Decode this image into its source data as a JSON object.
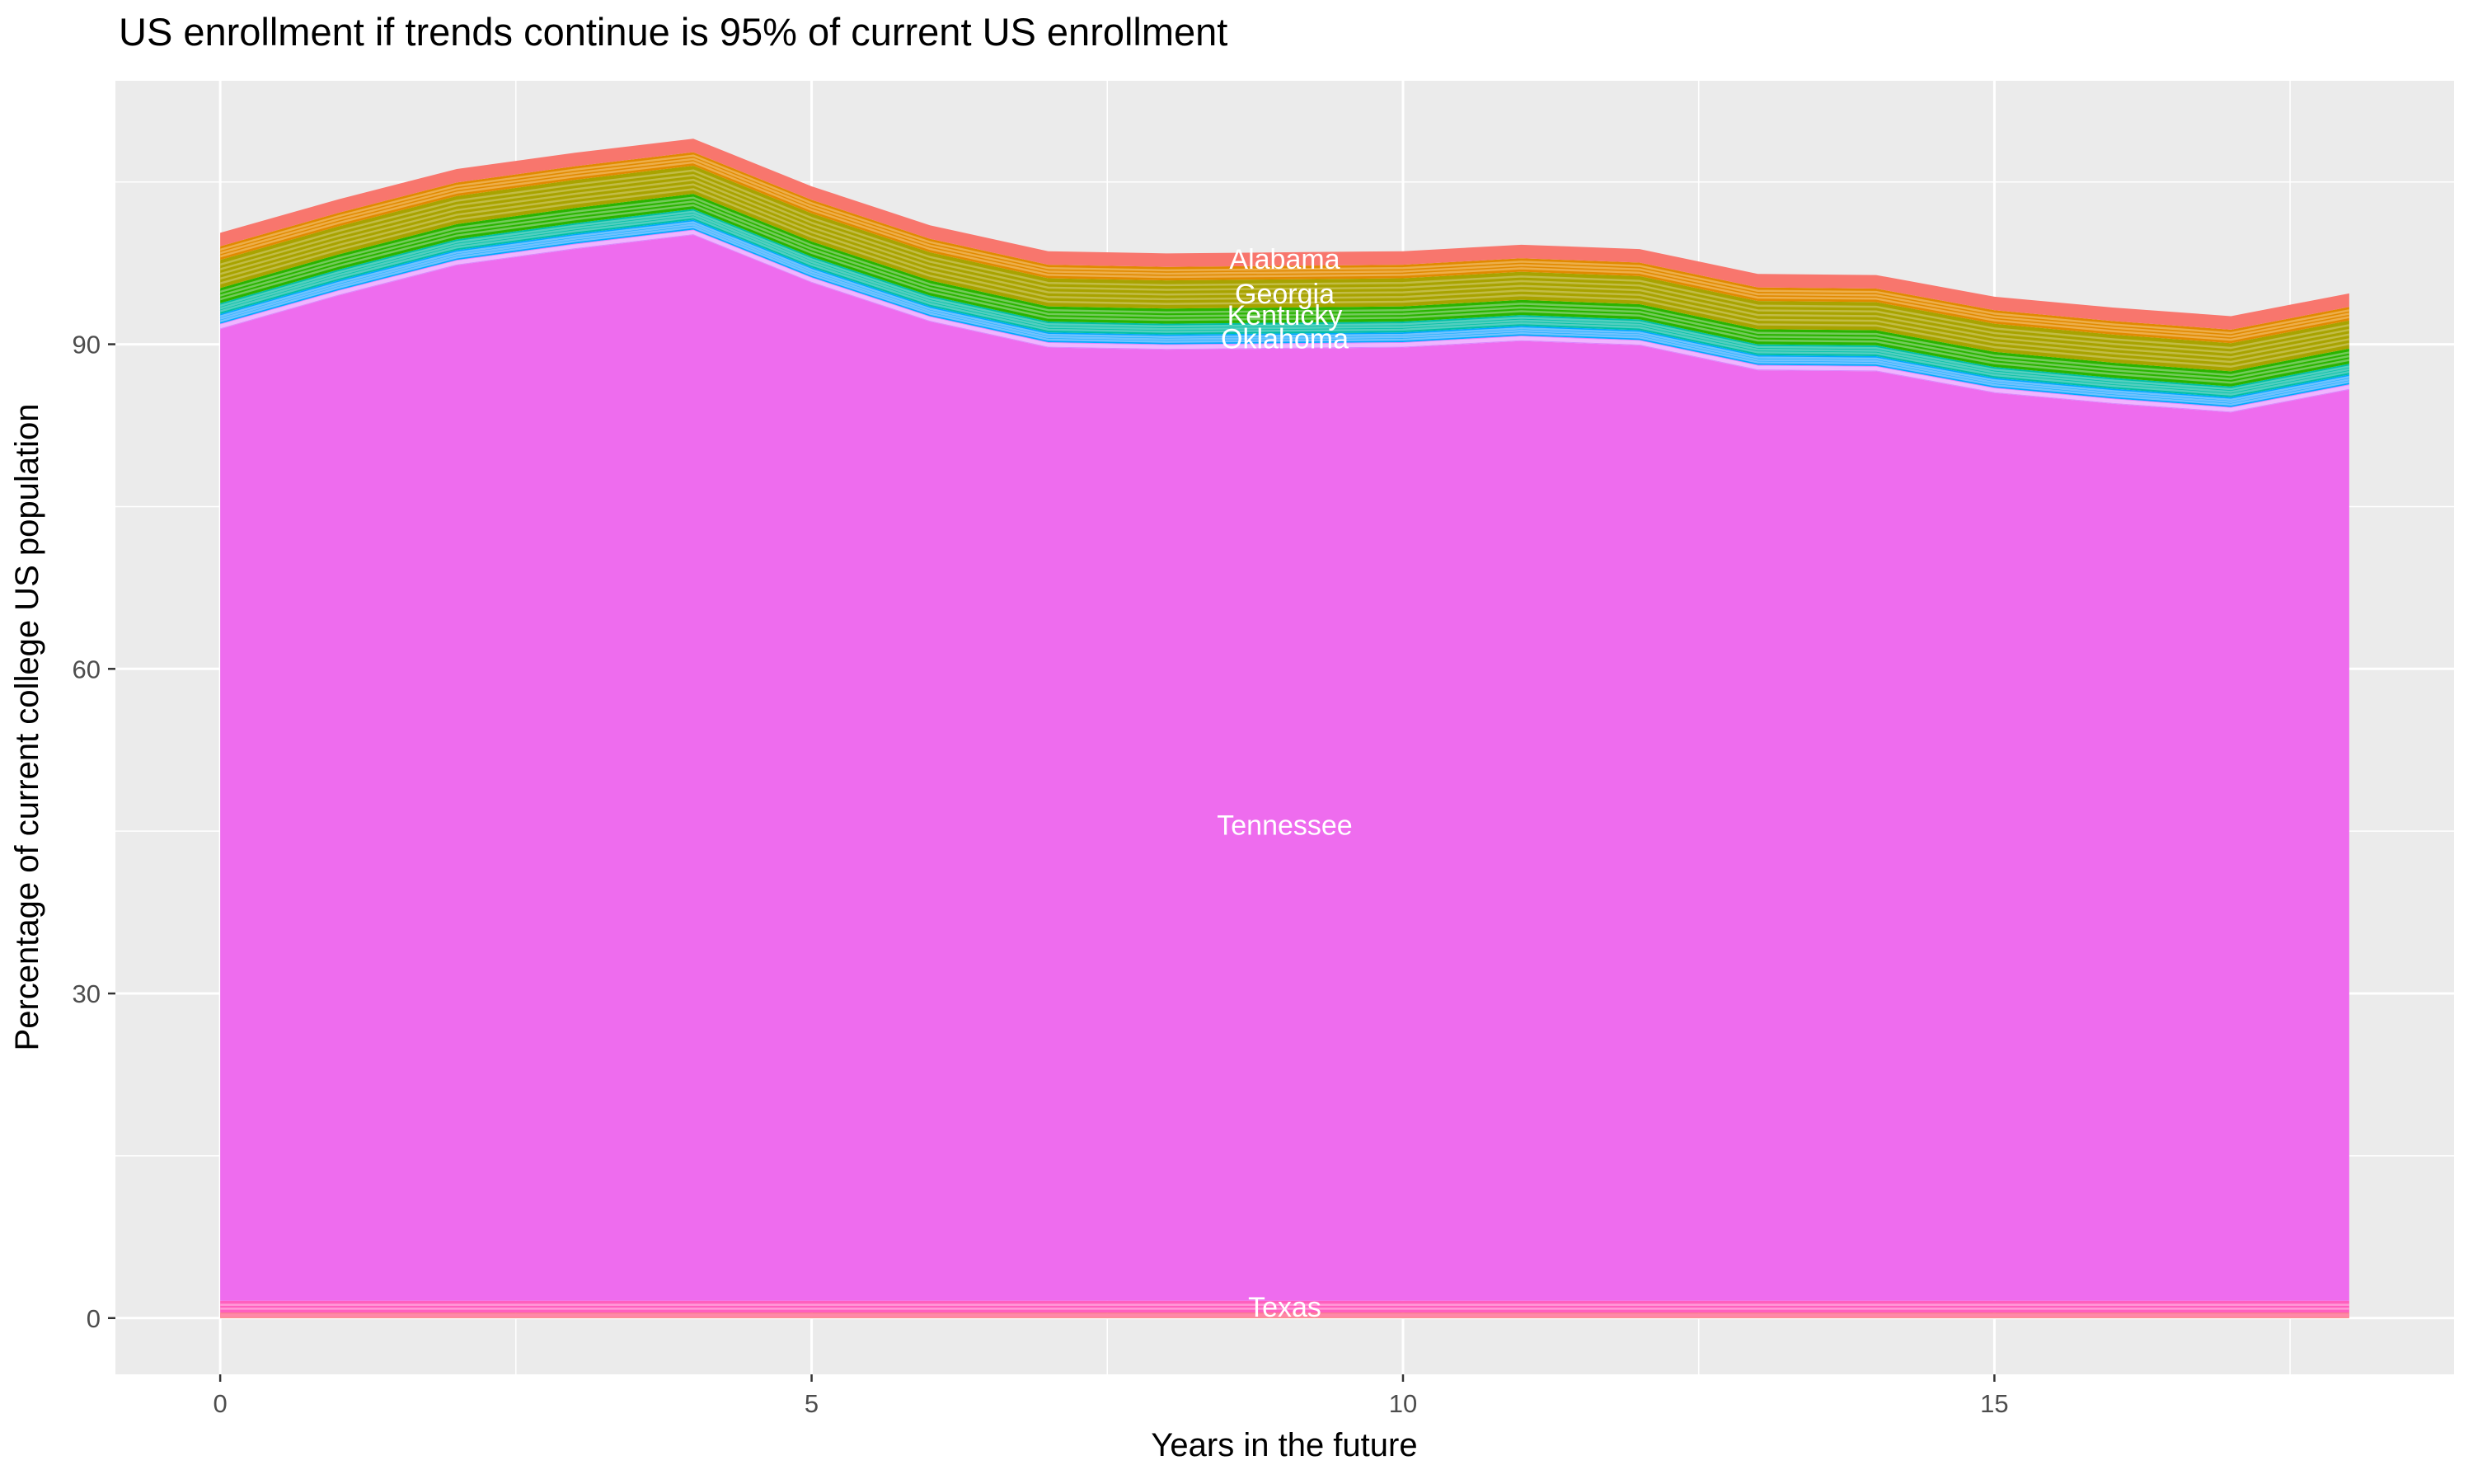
{
  "chart_data": {
    "type": "area",
    "stacked": true,
    "title": "US enrollment if trends continue is 95% of current US enrollment",
    "xlabel": "Years in the future",
    "ylabel": "Percentage of current college US population",
    "legend": "none",
    "grid": "on",
    "panel_background": "#EBEBEB",
    "gridline_color": "#FFFFFF",
    "tick_mark_color": "#333333",
    "tick_label_color": "#4D4D4D",
    "x": [
      0,
      1,
      2,
      3,
      4,
      5,
      6,
      7,
      8,
      9,
      10,
      11,
      12,
      13,
      14,
      15,
      16,
      17,
      18
    ],
    "x_range": [
      -0.886,
      18.886
    ],
    "y_range": [
      -5.2,
      114.35
    ],
    "x_major_ticks": [
      0,
      5,
      10,
      15
    ],
    "x_minor_gridlines": [
      2.5,
      7.5,
      12.5,
      17.5
    ],
    "y_major_ticks": [
      0,
      30,
      60,
      90
    ],
    "y_minor_gridlines": [
      15,
      45,
      75,
      105
    ],
    "total_stack_height": [
      100.3,
      103.4,
      106.2,
      107.7,
      109.0,
      104.6,
      101.0,
      98.6,
      98.4,
      98.5,
      98.6,
      99.2,
      98.8,
      96.5,
      96.4,
      94.4,
      93.4,
      92.6,
      94.7
    ],
    "series": [
      {
        "id": "band-bottom-red",
        "label": null,
        "color": "#F9716B",
        "stripe_color": "#FF87A8",
        "stripe_count": 2,
        "values": [
          0.5,
          0.5,
          0.5,
          0.5,
          0.5,
          0.5,
          0.5,
          0.5,
          0.5,
          0.5,
          0.5,
          0.5,
          0.5,
          0.5,
          0.5,
          0.5,
          0.5,
          0.5,
          0.5
        ]
      },
      {
        "id": "texas",
        "label": "Texas",
        "color": "#FF5FBE",
        "stripe_color": "#FF9AD8",
        "stripe_count": 2,
        "values": [
          1.1,
          1.1,
          1.1,
          1.1,
          1.1,
          1.1,
          1.1,
          1.1,
          1.1,
          1.1,
          1.1,
          1.1,
          1.1,
          1.1,
          1.1,
          1.1,
          1.1,
          1.1,
          1.1
        ]
      },
      {
        "id": "tennessee",
        "label": "Tennessee",
        "color": "#EE6CEE",
        "stripe_color": null,
        "stripe_count": 0,
        "values": [
          89.8,
          92.9,
          95.7,
          97.2,
          98.5,
          94.1,
          90.5,
          88.1,
          87.9,
          88.0,
          88.1,
          88.7,
          88.3,
          86.0,
          85.9,
          83.9,
          82.9,
          82.1,
          84.2
        ]
      },
      {
        "id": "band-violet",
        "label": null,
        "color": "#DB83FF",
        "stripe_color": "#EFB5FF",
        "stripe_count": 2,
        "values": [
          0.5,
          0.5,
          0.5,
          0.5,
          0.5,
          0.5,
          0.5,
          0.5,
          0.5,
          0.5,
          0.5,
          0.5,
          0.5,
          0.5,
          0.5,
          0.5,
          0.5,
          0.5,
          0.5
        ]
      },
      {
        "id": "oklahoma",
        "label": "Oklahoma",
        "color": "#00A9FF",
        "stripe_color": "#6FC2FF",
        "stripe_count": 3,
        "values": [
          0.9,
          0.9,
          0.9,
          0.9,
          0.9,
          0.9,
          0.9,
          0.9,
          0.9,
          0.9,
          0.9,
          0.9,
          0.9,
          0.9,
          0.9,
          0.9,
          0.9,
          0.9,
          0.9
        ]
      },
      {
        "id": "band-teal",
        "label": null,
        "color": "#00BFA6",
        "stripe_color": "#52CFBF",
        "stripe_count": 3,
        "values": [
          1.0,
          1.0,
          1.0,
          1.0,
          1.0,
          1.0,
          1.0,
          1.0,
          1.0,
          1.0,
          1.0,
          1.0,
          1.0,
          1.0,
          1.0,
          1.0,
          1.0,
          1.0,
          1.0
        ]
      },
      {
        "id": "kentucky",
        "label": "Kentucky",
        "color": "#2AB400",
        "stripe_color": "#73CA5A",
        "stripe_count": 3,
        "values": [
          1.4,
          1.4,
          1.4,
          1.4,
          1.4,
          1.4,
          1.4,
          1.4,
          1.4,
          1.4,
          1.4,
          1.4,
          1.4,
          1.4,
          1.4,
          1.4,
          1.4,
          1.4,
          1.4
        ]
      },
      {
        "id": "georgia",
        "label": "Georgia",
        "color": "#A8A300",
        "stripe_color": "#C2BC45",
        "stripe_count": 5,
        "values": [
          2.6,
          2.6,
          2.6,
          2.6,
          2.6,
          2.6,
          2.6,
          2.6,
          2.6,
          2.6,
          2.6,
          2.6,
          2.6,
          2.6,
          2.6,
          2.6,
          2.6,
          2.6,
          2.6
        ]
      },
      {
        "id": "band-orange",
        "label": null,
        "color": "#E18A00",
        "stripe_color": "#EDAE49",
        "stripe_count": 3,
        "values": [
          1.25,
          1.25,
          1.25,
          1.25,
          1.25,
          1.25,
          1.25,
          1.25,
          1.25,
          1.25,
          1.25,
          1.25,
          1.25,
          1.25,
          1.25,
          1.25,
          1.25,
          1.25,
          1.25
        ]
      },
      {
        "id": "alabama",
        "label": "Alabama",
        "color": "#F8766D",
        "stripe_color": null,
        "stripe_count": 0,
        "values": [
          1.25,
          1.25,
          1.25,
          1.25,
          1.25,
          1.25,
          1.25,
          1.25,
          1.25,
          1.25,
          1.25,
          1.25,
          1.25,
          1.25,
          1.25,
          1.25,
          1.25,
          1.25,
          1.25
        ]
      }
    ],
    "area_labels": {
      "x": 9,
      "color": "#FFFFFF",
      "entries": [
        {
          "text": "Alabama",
          "series": "alabama"
        },
        {
          "text": "Georgia",
          "series": "georgia"
        },
        {
          "text": "Kentucky",
          "series": "kentucky"
        },
        {
          "text": "Oklahoma",
          "series": "oklahoma"
        },
        {
          "text": "Tennessee",
          "series": "tennessee"
        },
        {
          "text": "Texas",
          "series": "texas"
        }
      ]
    }
  }
}
